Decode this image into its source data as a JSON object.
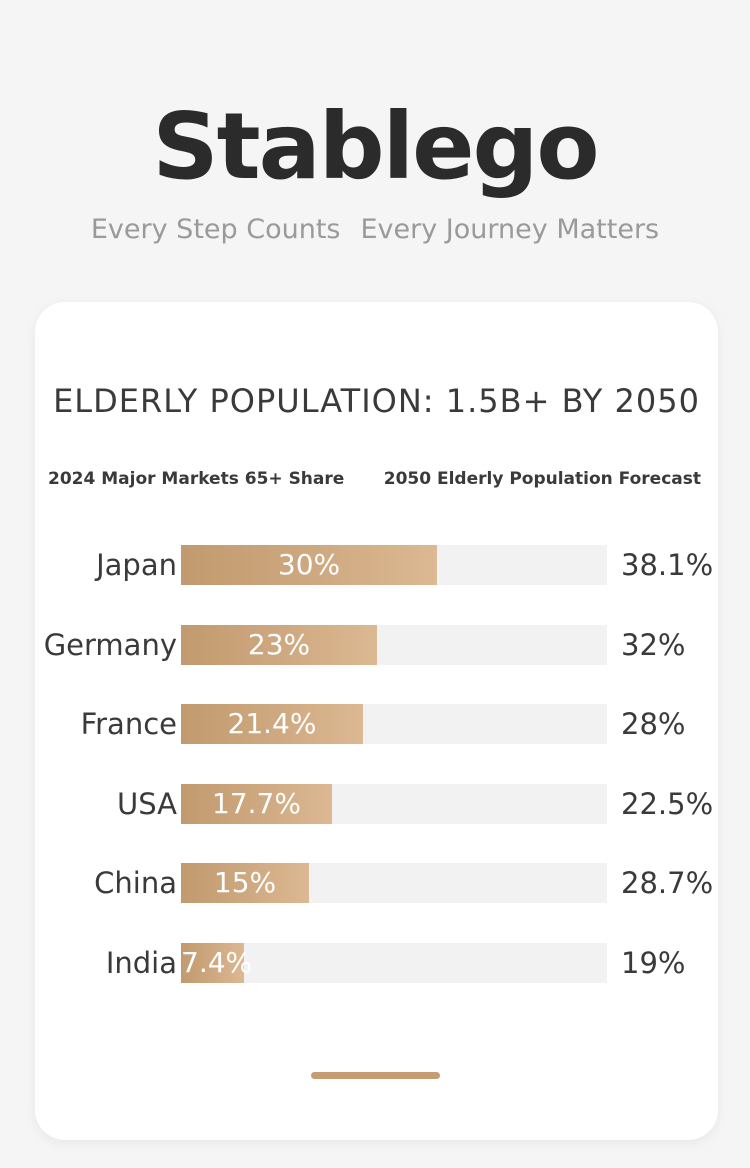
{
  "brand": {
    "name": "Stablego",
    "tagline_part1": "Every Step Counts",
    "tagline_part2": "Every Journey Matters"
  },
  "card": {
    "title": "ELDERLY POPULATION: 1.5B+ BY 2050",
    "left_header": "2024 Major Markets 65+ Share",
    "right_header": "2050 Elderly Population Forecast"
  },
  "colors": {
    "bar_start": "#c29a6f",
    "bar_end": "#dcb993",
    "track": "#f2f2f2",
    "text": "#3a3a3a"
  },
  "chart_data": {
    "type": "bar",
    "orientation": "horizontal",
    "title": "ELDERLY POPULATION: 1.5B+ BY 2050",
    "xlim": [
      0,
      50
    ],
    "categories": [
      "Japan",
      "Germany",
      "France",
      "USA",
      "China",
      "India"
    ],
    "series": [
      {
        "name": "2024 Major Markets 65+ Share",
        "values": [
          30,
          23,
          21.4,
          17.7,
          15,
          7.4
        ],
        "labels": [
          "30%",
          "23%",
          "21.4%",
          "17.7%",
          "15%",
          "7.4%"
        ]
      },
      {
        "name": "2050 Elderly Population Forecast",
        "values": [
          38.1,
          32,
          28,
          22.5,
          28.7,
          19
        ],
        "labels": [
          "38.1%",
          "32%",
          "28%",
          "22.5%",
          "28.7%",
          "19%"
        ]
      }
    ]
  }
}
